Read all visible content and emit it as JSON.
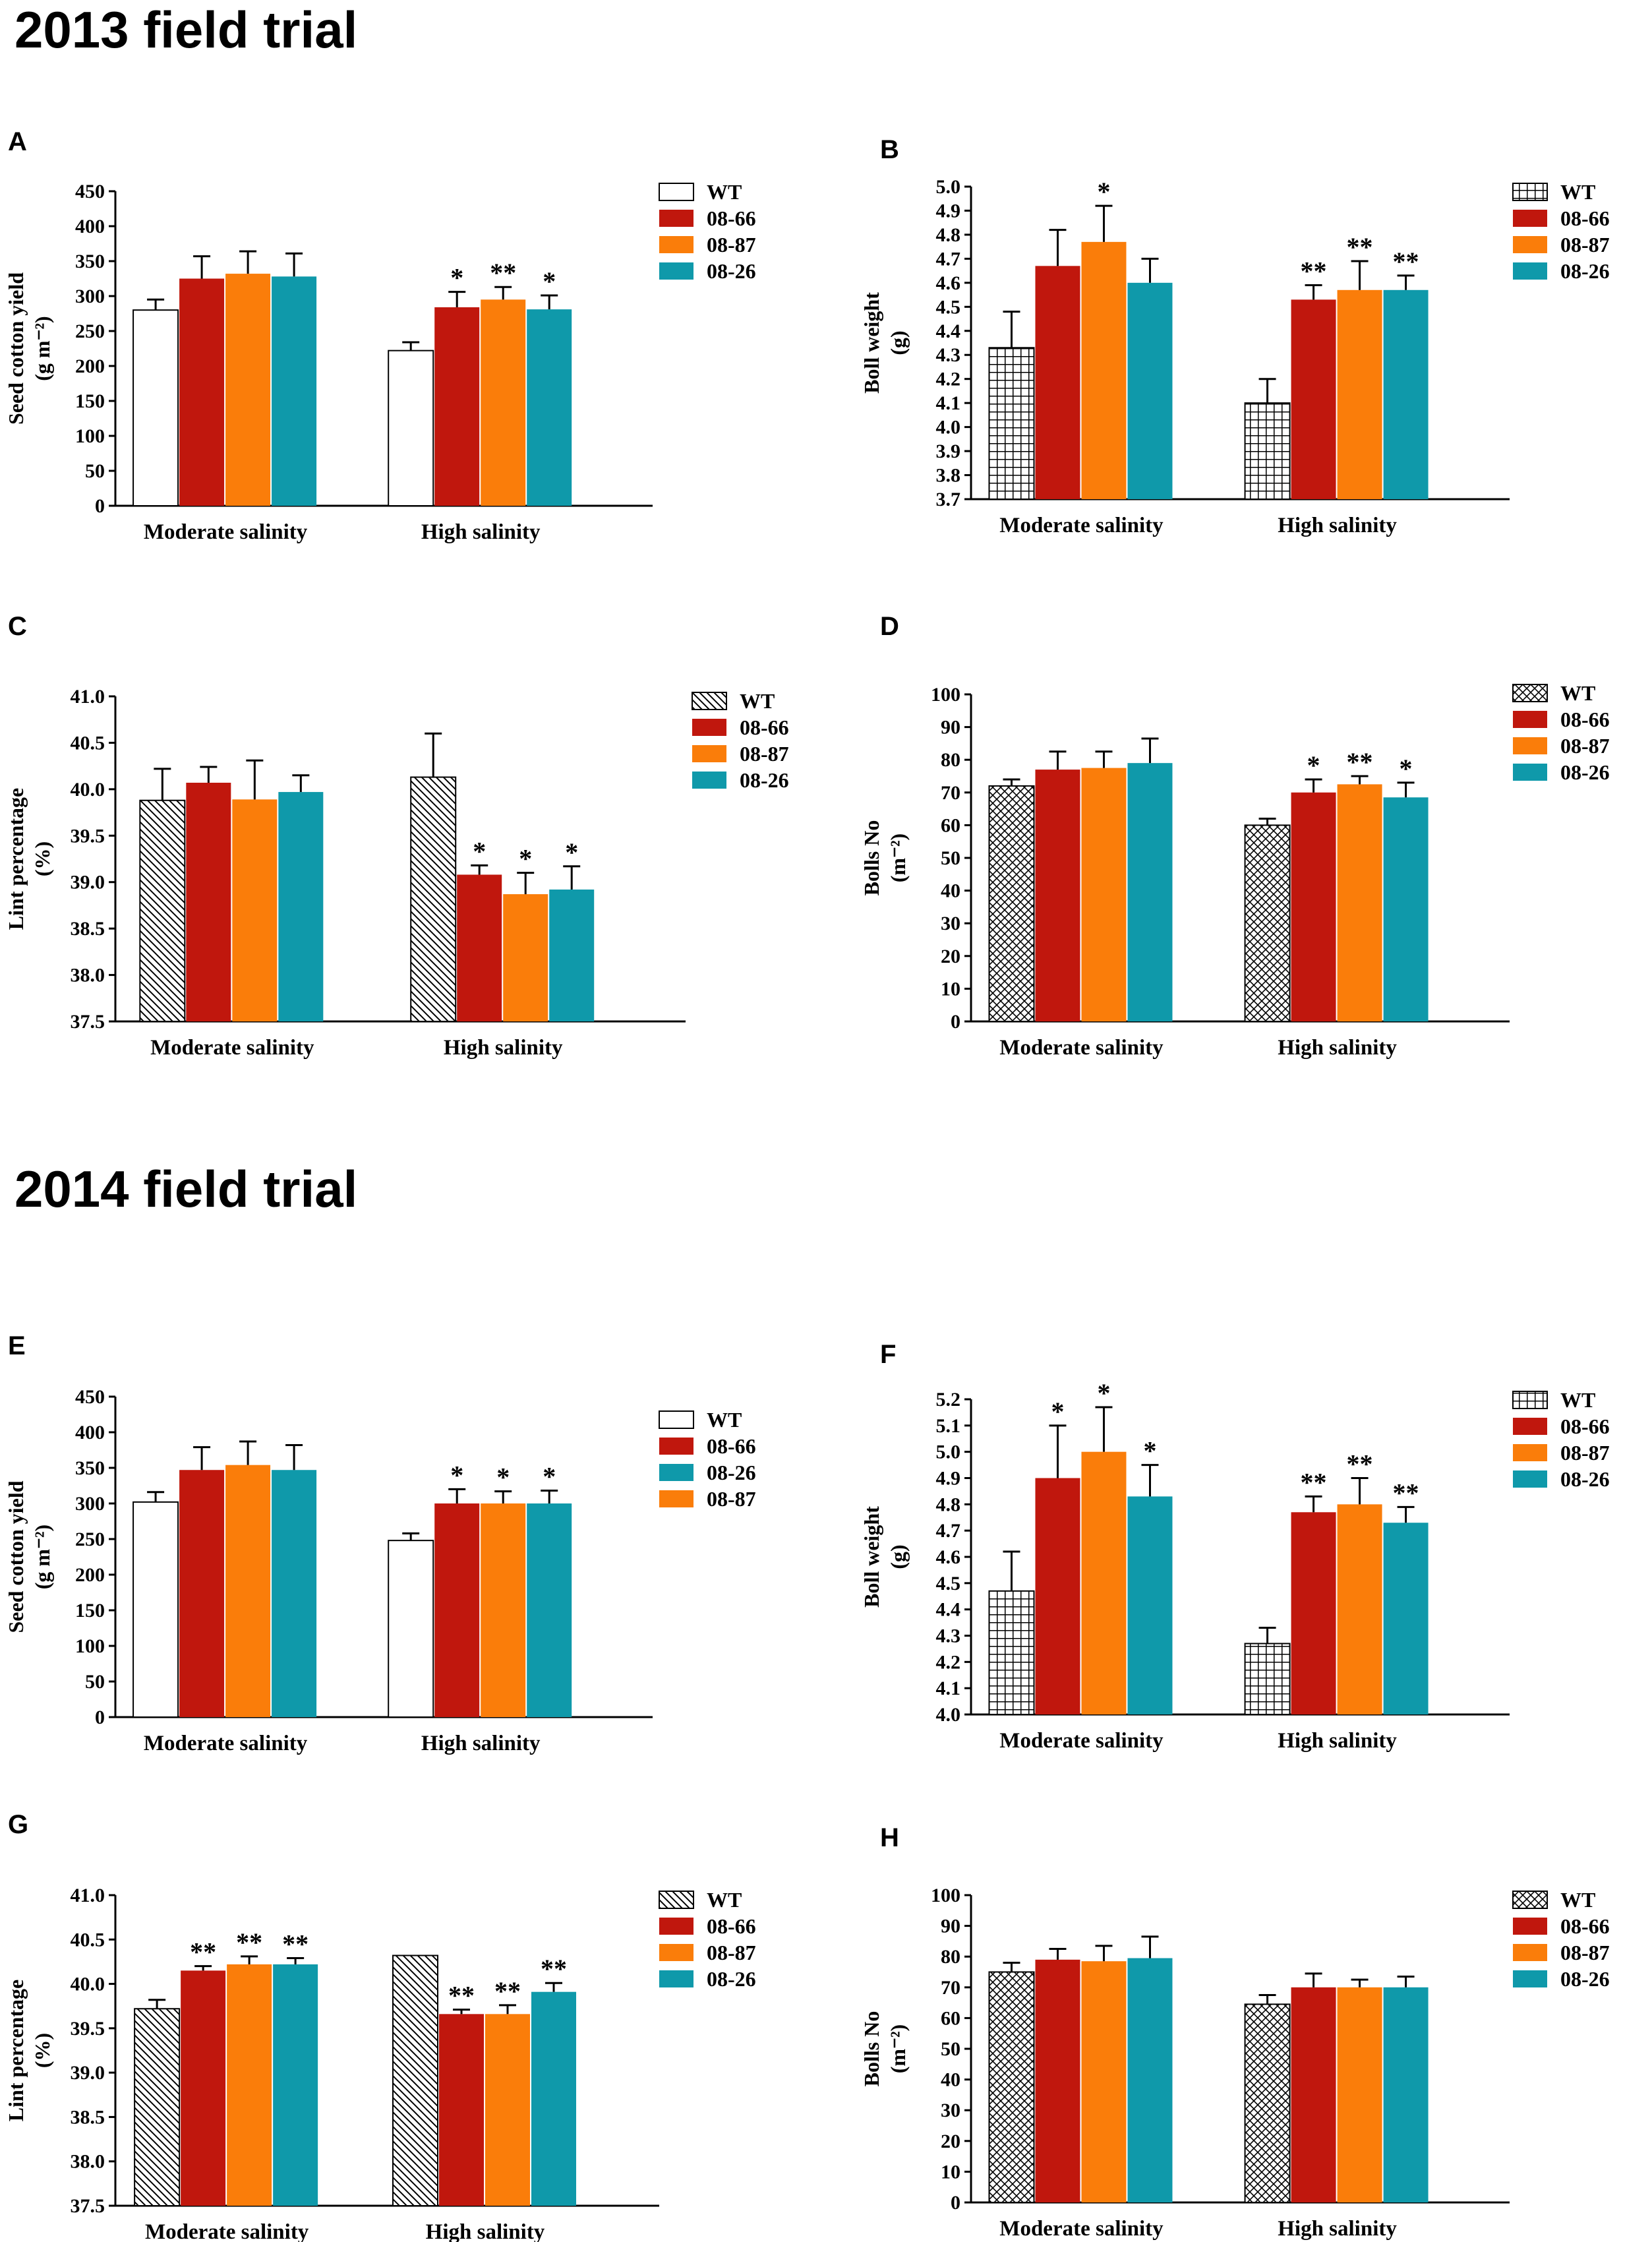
{
  "sections": {
    "s2013": "2013 field trial",
    "s2014": "2014 field trial"
  },
  "colors": {
    "WT": "#ffffff",
    "08-66": "#c0170d",
    "08-87": "#fa7d0a",
    "08-26": "#0f99aa",
    "axis": "#000000"
  },
  "chart_data": [
    {
      "panel": "A",
      "type": "bar",
      "ylabel": [
        "Seed cotton yield",
        "(g m⁻²)"
      ],
      "ylim": [
        0,
        450
      ],
      "yticks": [
        0,
        50,
        100,
        150,
        200,
        250,
        300,
        350,
        400,
        450
      ],
      "decimals": 0,
      "categories": [
        "Moderate salinity",
        "High salinity"
      ],
      "wt_pattern": "none",
      "legend_order": [
        "WT",
        "08-66",
        "08-87",
        "08-26"
      ],
      "series": [
        {
          "name": "WT",
          "values": [
            280,
            222
          ],
          "errors": [
            15,
            12
          ],
          "sig": [
            "",
            ""
          ]
        },
        {
          "name": "08-66",
          "values": [
            325,
            284
          ],
          "errors": [
            32,
            22
          ],
          "sig": [
            "",
            "*"
          ]
        },
        {
          "name": "08-87",
          "values": [
            332,
            295
          ],
          "errors": [
            32,
            18
          ],
          "sig": [
            "",
            "**"
          ]
        },
        {
          "name": "08-26",
          "values": [
            328,
            281
          ],
          "errors": [
            33,
            20
          ],
          "sig": [
            "",
            "*"
          ]
        }
      ]
    },
    {
      "panel": "B",
      "type": "bar",
      "ylabel": [
        "Boll weight",
        "(g)"
      ],
      "ylim": [
        3.7,
        5.0
      ],
      "yticks": [
        3.7,
        3.8,
        3.9,
        4.0,
        4.1,
        4.2,
        4.3,
        4.4,
        4.5,
        4.6,
        4.7,
        4.8,
        4.9,
        5.0
      ],
      "decimals": 1,
      "categories": [
        "Moderate salinity",
        "High salinity"
      ],
      "wt_pattern": "grid",
      "legend_order": [
        "WT",
        "08-66",
        "08-87",
        "08-26"
      ],
      "series": [
        {
          "name": "WT",
          "values": [
            4.33,
            4.1
          ],
          "errors": [
            0.15,
            0.1
          ],
          "sig": [
            "",
            ""
          ]
        },
        {
          "name": "08-66",
          "values": [
            4.67,
            4.53
          ],
          "errors": [
            0.15,
            0.06
          ],
          "sig": [
            "",
            "**"
          ]
        },
        {
          "name": "08-87",
          "values": [
            4.77,
            4.57
          ],
          "errors": [
            0.15,
            0.12
          ],
          "sig": [
            "*",
            "**"
          ]
        },
        {
          "name": "08-26",
          "values": [
            4.6,
            4.57
          ],
          "errors": [
            0.1,
            0.06
          ],
          "sig": [
            "",
            "**"
          ]
        }
      ]
    },
    {
      "panel": "C",
      "type": "bar",
      "ylabel": [
        "Lint percentage",
        "(%)"
      ],
      "ylim": [
        37.5,
        41.0
      ],
      "yticks": [
        37.5,
        38.0,
        38.5,
        39.0,
        39.5,
        40.0,
        40.5,
        41.0
      ],
      "decimals": 1,
      "categories": [
        "Moderate salinity",
        "High salinity"
      ],
      "wt_pattern": "diag",
      "legend_order": [
        "WT",
        "08-66",
        "08-87",
        "08-26"
      ],
      "series": [
        {
          "name": "WT",
          "values": [
            39.88,
            40.13
          ],
          "errors": [
            0.34,
            0.47
          ],
          "sig": [
            "",
            ""
          ]
        },
        {
          "name": "08-66",
          "values": [
            40.07,
            39.08
          ],
          "errors": [
            0.17,
            0.1
          ],
          "sig": [
            "",
            "*"
          ]
        },
        {
          "name": "08-87",
          "values": [
            39.89,
            38.87
          ],
          "errors": [
            0.42,
            0.23
          ],
          "sig": [
            "",
            "*"
          ]
        },
        {
          "name": "08-26",
          "values": [
            39.97,
            38.92
          ],
          "errors": [
            0.18,
            0.25
          ],
          "sig": [
            "",
            "*"
          ]
        }
      ]
    },
    {
      "panel": "D",
      "type": "bar",
      "ylabel": [
        "Bolls No",
        "(m⁻²)"
      ],
      "ylim": [
        0,
        100
      ],
      "yticks": [
        0,
        10,
        20,
        30,
        40,
        50,
        60,
        70,
        80,
        90,
        100
      ],
      "decimals": 0,
      "categories": [
        "Moderate salinity",
        "High salinity"
      ],
      "wt_pattern": "cross",
      "legend_order": [
        "WT",
        "08-66",
        "08-87",
        "08-26"
      ],
      "series": [
        {
          "name": "WT",
          "values": [
            72,
            60
          ],
          "errors": [
            2,
            2
          ],
          "sig": [
            "",
            ""
          ]
        },
        {
          "name": "08-66",
          "values": [
            77,
            70
          ],
          "errors": [
            5.5,
            4
          ],
          "sig": [
            "",
            "*"
          ]
        },
        {
          "name": "08-87",
          "values": [
            77.5,
            72.5
          ],
          "errors": [
            5,
            2.5
          ],
          "sig": [
            "",
            "**"
          ]
        },
        {
          "name": "08-26",
          "values": [
            79,
            68.5
          ],
          "errors": [
            7.5,
            4.5
          ],
          "sig": [
            "",
            "*"
          ]
        }
      ]
    },
    {
      "panel": "E",
      "type": "bar",
      "ylabel": [
        "Seed cotton yield",
        "(g m⁻²)"
      ],
      "ylim": [
        0,
        450
      ],
      "yticks": [
        0,
        50,
        100,
        150,
        200,
        250,
        300,
        350,
        400,
        450
      ],
      "decimals": 0,
      "categories": [
        "Moderate salinity",
        "High salinity"
      ],
      "wt_pattern": "none",
      "legend_order": [
        "WT",
        "08-66",
        "08-26",
        "08-87"
      ],
      "series": [
        {
          "name": "WT",
          "values": [
            302,
            248
          ],
          "errors": [
            14,
            10
          ],
          "sig": [
            "",
            ""
          ]
        },
        {
          "name": "08-66",
          "values": [
            347,
            300
          ],
          "errors": [
            32,
            20
          ],
          "sig": [
            "",
            "*"
          ]
        },
        {
          "name": "08-87",
          "values": [
            354,
            300
          ],
          "errors": [
            33,
            17
          ],
          "sig": [
            "",
            "*"
          ]
        },
        {
          "name": "08-26",
          "values": [
            347,
            300
          ],
          "errors": [
            35,
            18
          ],
          "sig": [
            "",
            "*"
          ]
        }
      ]
    },
    {
      "panel": "F",
      "type": "bar",
      "ylabel": [
        "Boll weight",
        "(g)"
      ],
      "ylim": [
        4.0,
        5.2
      ],
      "yticks": [
        4.0,
        4.1,
        4.2,
        4.3,
        4.4,
        4.5,
        4.6,
        4.7,
        4.8,
        4.9,
        5.0,
        5.1,
        5.2
      ],
      "decimals": 1,
      "categories": [
        "Moderate salinity",
        "High salinity"
      ],
      "wt_pattern": "grid",
      "legend_order": [
        "WT",
        "08-66",
        "08-87",
        "08-26"
      ],
      "series": [
        {
          "name": "WT",
          "values": [
            4.47,
            4.27
          ],
          "errors": [
            0.15,
            0.06
          ],
          "sig": [
            "",
            ""
          ]
        },
        {
          "name": "08-66",
          "values": [
            4.9,
            4.77
          ],
          "errors": [
            0.2,
            0.06
          ],
          "sig": [
            "*",
            "**"
          ]
        },
        {
          "name": "08-87",
          "values": [
            5.0,
            4.8
          ],
          "errors": [
            0.17,
            0.1
          ],
          "sig": [
            "*",
            "**"
          ]
        },
        {
          "name": "08-26",
          "values": [
            4.83,
            4.73
          ],
          "errors": [
            0.12,
            0.06
          ],
          "sig": [
            "*",
            "**"
          ]
        }
      ]
    },
    {
      "panel": "G",
      "type": "bar",
      "ylabel": [
        "Lint percentage",
        "(%)"
      ],
      "ylim": [
        37.5,
        41.0
      ],
      "yticks": [
        37.5,
        38.0,
        38.5,
        39.0,
        39.5,
        40.0,
        40.5,
        41.0
      ],
      "decimals": 1,
      "categories": [
        "Moderate salinity",
        "High salinity"
      ],
      "wt_pattern": "diag",
      "legend_order": [
        "WT",
        "08-66",
        "08-87",
        "08-26"
      ],
      "series": [
        {
          "name": "WT",
          "values": [
            39.72,
            40.32
          ],
          "errors": [
            0.1,
            0.0
          ],
          "sig": [
            "",
            ""
          ]
        },
        {
          "name": "08-66",
          "values": [
            40.15,
            39.66
          ],
          "errors": [
            0.05,
            0.05
          ],
          "sig": [
            "**",
            "**"
          ]
        },
        {
          "name": "08-87",
          "values": [
            40.22,
            39.66
          ],
          "errors": [
            0.09,
            0.1
          ],
          "sig": [
            "**",
            "**"
          ]
        },
        {
          "name": "08-26",
          "values": [
            40.22,
            39.91
          ],
          "errors": [
            0.07,
            0.1
          ],
          "sig": [
            "**",
            "**"
          ]
        }
      ]
    },
    {
      "panel": "H",
      "type": "bar",
      "ylabel": [
        "Bolls No",
        "(m⁻²)"
      ],
      "ylim": [
        0,
        100
      ],
      "yticks": [
        0,
        10,
        20,
        30,
        40,
        50,
        60,
        70,
        80,
        90,
        100
      ],
      "decimals": 0,
      "categories": [
        "Moderate salinity",
        "High salinity"
      ],
      "wt_pattern": "cross",
      "legend_order": [
        "WT",
        "08-66",
        "08-87",
        "08-26"
      ],
      "series": [
        {
          "name": "WT",
          "values": [
            75,
            64.5
          ],
          "errors": [
            3,
            3
          ],
          "sig": [
            "",
            ""
          ]
        },
        {
          "name": "08-66",
          "values": [
            79,
            70
          ],
          "errors": [
            3.5,
            4.5
          ],
          "sig": [
            "",
            ""
          ]
        },
        {
          "name": "08-87",
          "values": [
            78.5,
            70
          ],
          "errors": [
            5,
            2.5
          ],
          "sig": [
            "",
            ""
          ]
        },
        {
          "name": "08-26",
          "values": [
            79.5,
            70
          ],
          "errors": [
            7,
            3.5
          ],
          "sig": [
            "",
            ""
          ]
        }
      ]
    }
  ]
}
